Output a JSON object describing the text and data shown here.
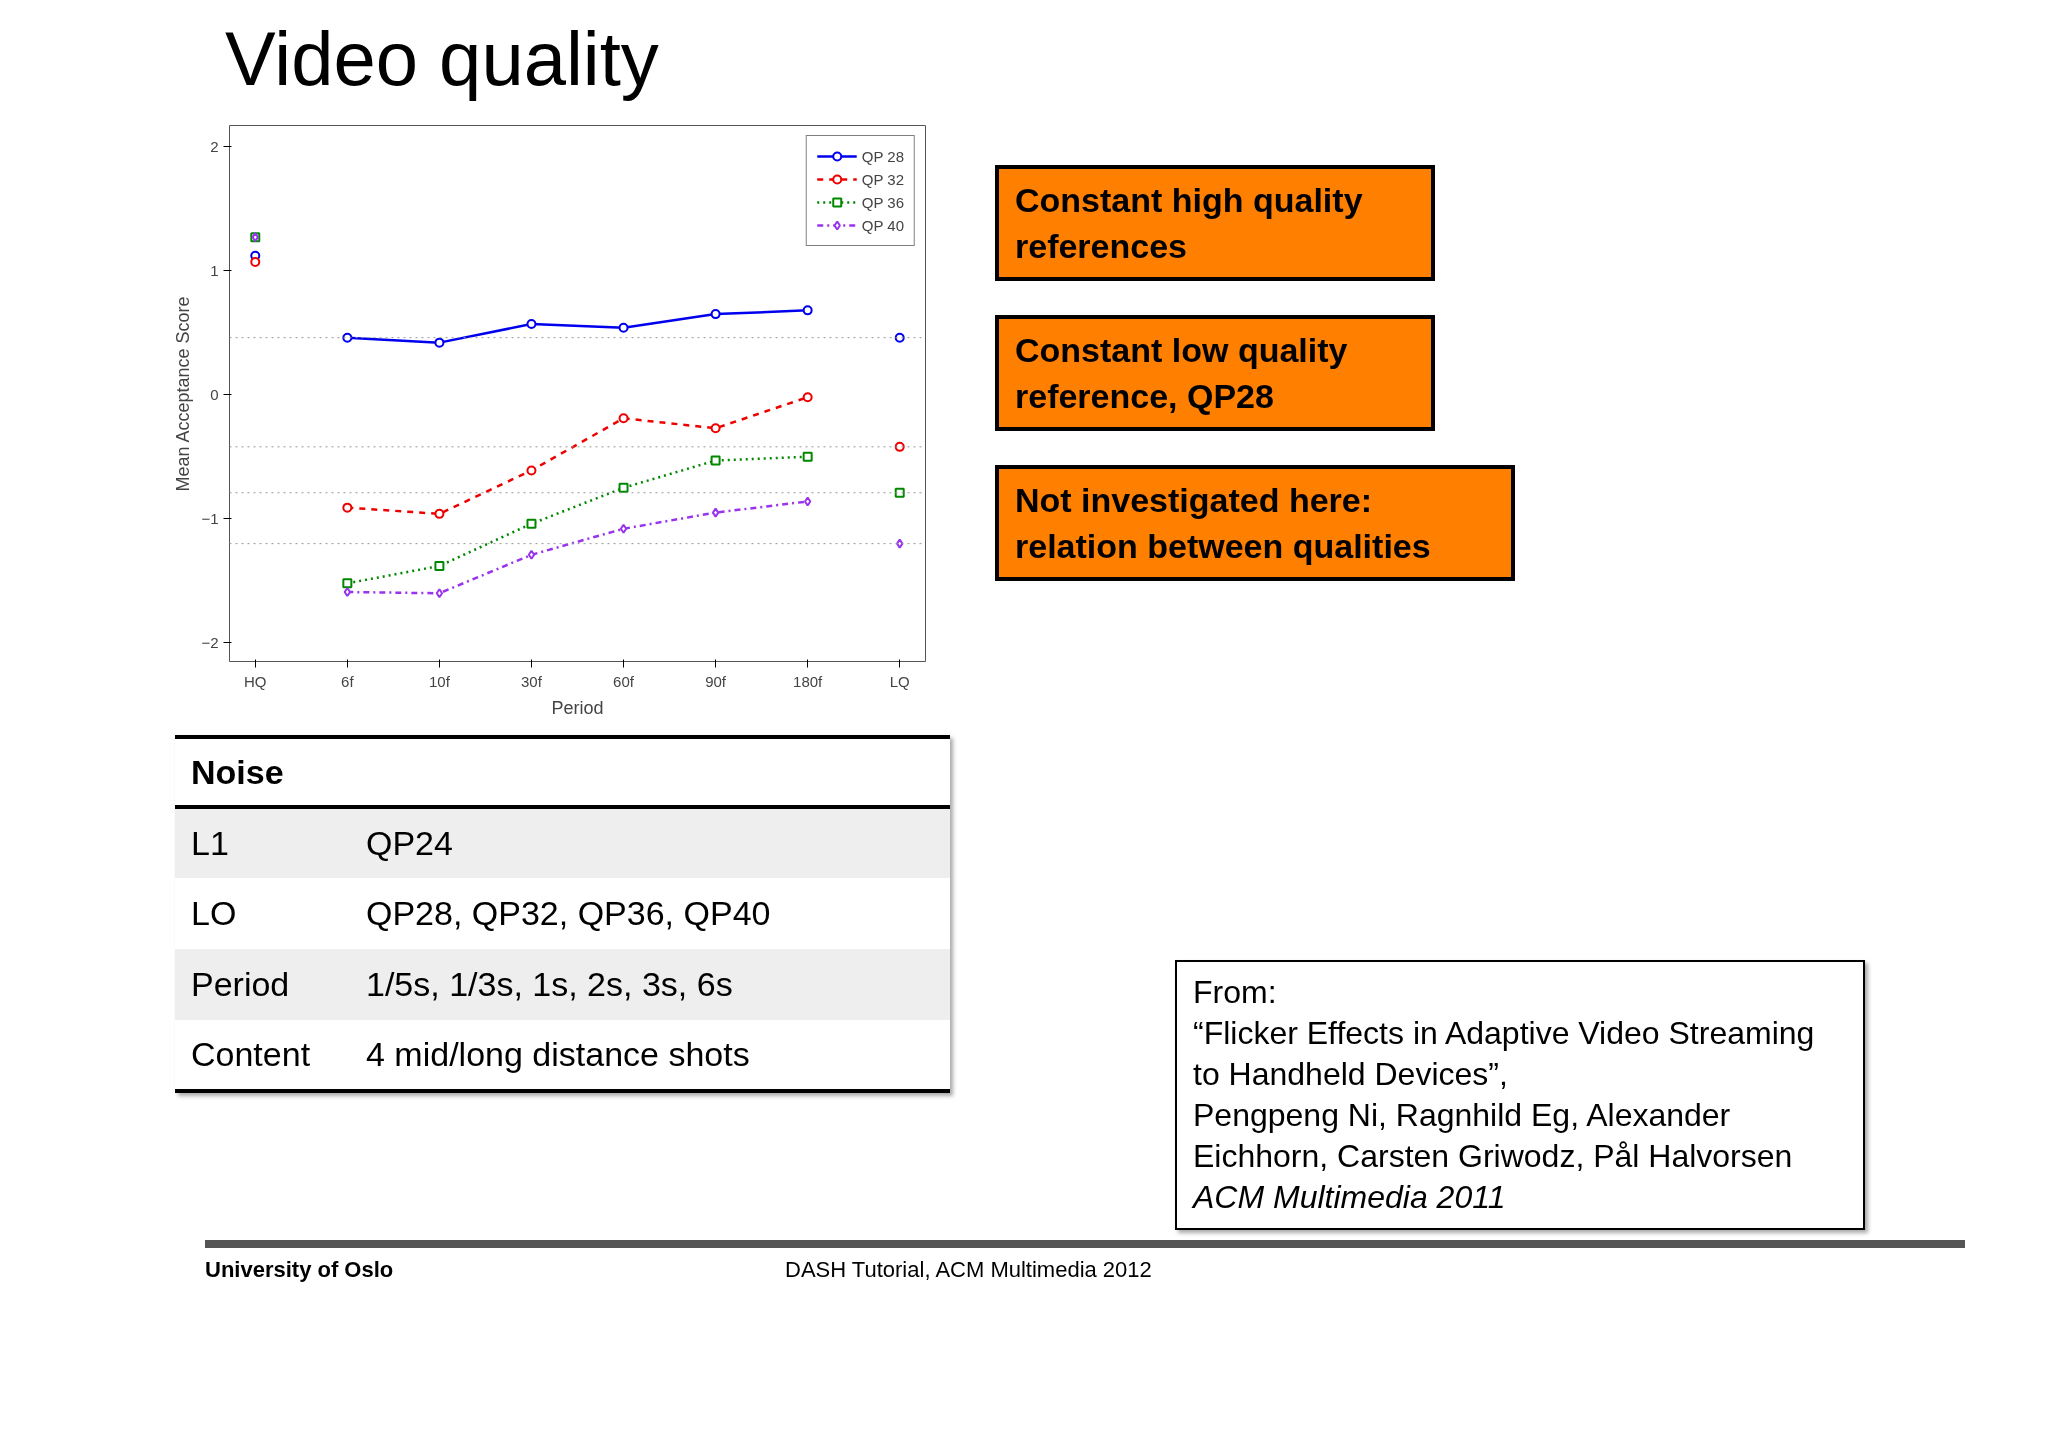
{
  "chart_data": {
    "type": "line",
    "title": "Video quality",
    "xlabel": "Period",
    "ylabel": "Mean Acceptance Score",
    "categories": [
      "HQ",
      "6f",
      "10f",
      "30f",
      "60f",
      "90f",
      "180f",
      "LQ"
    ],
    "ylim": [
      -2.15,
      2.17
    ],
    "yticks": [
      -2,
      -1,
      0,
      1,
      2
    ],
    "legend": "top right",
    "grid": false,
    "series": [
      {
        "name": "QP 28",
        "color": "#0000ee",
        "marker": "circle",
        "line_style": "solid",
        "values": [
          null,
          0.46,
          0.42,
          0.57,
          0.54,
          0.65,
          0.68,
          null
        ]
      },
      {
        "name": "QP 32",
        "color": "#ee0000",
        "marker": "circle",
        "line_style": "dashed",
        "values": [
          null,
          -0.91,
          -0.96,
          -0.61,
          -0.19,
          -0.27,
          -0.02,
          null
        ]
      },
      {
        "name": "QP 36",
        "color": "#008800",
        "marker": "square",
        "line_style": "dotted",
        "values": [
          null,
          -1.52,
          -1.38,
          -1.04,
          -0.75,
          -0.53,
          -0.5,
          null
        ]
      },
      {
        "name": "QP 40",
        "color": "#9933ee",
        "marker": "diamond",
        "line_style": "dashdot",
        "values": [
          null,
          -1.59,
          -1.6,
          -1.29,
          -1.08,
          -0.95,
          -0.86,
          null
        ]
      },
      {
        "type": "scatter",
        "color": "#0000ee",
        "marker": "circle",
        "values": [
          1.12,
          null,
          null,
          null,
          null,
          null,
          null,
          0.46
        ]
      },
      {
        "type": "scatter",
        "color": "#ee0000",
        "marker": "circle",
        "values": [
          1.07,
          null,
          null,
          null,
          null,
          null,
          null,
          -0.42
        ]
      },
      {
        "type": "scatter",
        "color": "#008800",
        "marker": "square",
        "values": [
          1.27,
          null,
          null,
          null,
          null,
          null,
          null,
          -0.79
        ]
      },
      {
        "type": "scatter",
        "color": "#9933ee",
        "marker": "diamond",
        "values": [
          1.27,
          null,
          null,
          null,
          null,
          null,
          null,
          -1.2
        ]
      }
    ],
    "ref_lines": [
      {
        "axis": "y",
        "value": 0.46,
        "color": "#999999",
        "line_style": "dotted"
      },
      {
        "axis": "y",
        "value": -0.42,
        "color": "#999999",
        "line_style": "dotted"
      },
      {
        "axis": "y",
        "value": -0.79,
        "color": "#999999",
        "line_style": "dotted"
      },
      {
        "axis": "y",
        "value": -1.2,
        "color": "#999999",
        "line_style": "dotted"
      }
    ],
    "annotations": [
      "Constant high quality references",
      "Constant low quality reference, QP28",
      "Not investigated here: relation between qualities",
      "Noise",
      "L1",
      "QP24",
      "LO",
      "QP28, QP32, QP36, QP40",
      "Period",
      "1/5s, 1/3s, 1s, 2s, 3s, 6s",
      "Content",
      "4 mid/long distance shots",
      "From:\n“Flicker Effects in Adaptive Video Streaming to Handheld Devices”,\nPengpeng Ni, Ragnhild Eg, Alexander Eichhorn, Carsten Griwodz, Pål Halvorsen\nACM Multimedia 2011",
      "University of Oslo",
      "DASH Tutorial, ACM Multimedia 2012"
    ]
  }
}
